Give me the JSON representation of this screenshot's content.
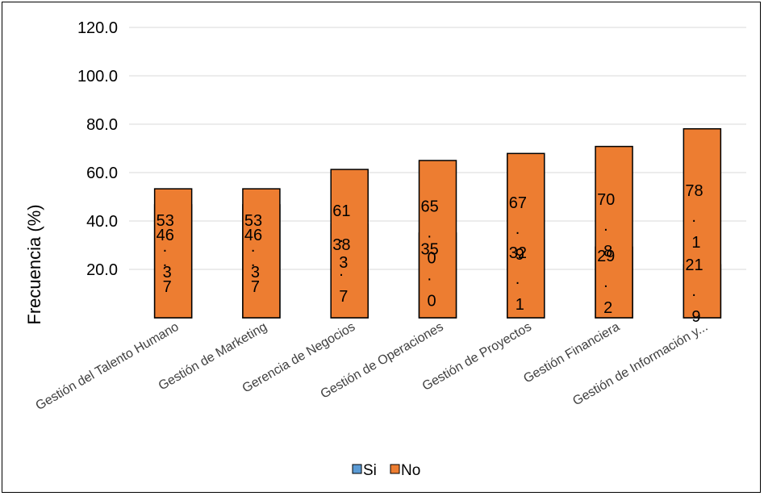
{
  "chart_data": {
    "type": "bar",
    "stacked": true,
    "categories": [
      "Gestión del Talento Humano",
      "Gestión de Marketing",
      "Gerencia de Negocios",
      "Gestión de Operaciones",
      "Gestión de Proyectos",
      "Gestión Financiera",
      "Gestión de Información y..."
    ],
    "series": [
      {
        "name": "Si",
        "color": "#5b9bd5",
        "values": [
          46.7,
          46.7,
          38.7,
          35.0,
          32.1,
          29.2,
          21.9
        ]
      },
      {
        "name": "No",
        "color": "#ed7d31",
        "values": [
          53.3,
          53.3,
          61.3,
          65.0,
          67.9,
          70.8,
          78.1
        ]
      }
    ],
    "ylabel": "Frecuencia (%)",
    "xlabel": "",
    "ylim": [
      0,
      120
    ],
    "yticks": [
      "20.0",
      "40.0",
      "60.0",
      "80.0",
      "100.0",
      "120.0"
    ],
    "ytick_values": [
      20,
      40,
      60,
      80,
      100,
      120
    ],
    "grid": true,
    "legend_position": "bottom",
    "gridline_color": "#d9d9d9"
  }
}
